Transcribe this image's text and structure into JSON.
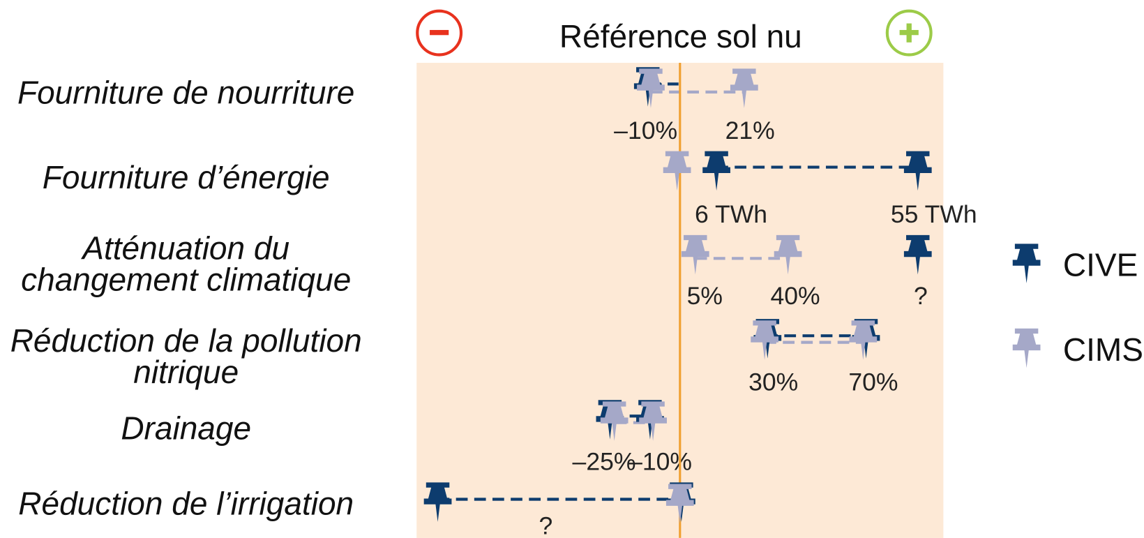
{
  "title": "Référence sol nu",
  "rows": [
    {
      "label": [
        "Fourniture de nourriture"
      ],
      "values": [
        "–10%",
        "21%"
      ]
    },
    {
      "label": [
        "Fourniture d’énergie"
      ],
      "values": [
        "6 TWh",
        "55 TWh"
      ]
    },
    {
      "label": [
        "Atténuation du",
        "changement climatique"
      ],
      "values": [
        "5%",
        "40%",
        "?"
      ]
    },
    {
      "label": [
        "Réduction de la pollution",
        "nitrique"
      ],
      "values": [
        "30%",
        "70%"
      ]
    },
    {
      "label": [
        "Drainage"
      ],
      "values": [
        "–25%",
        "–10%"
      ]
    },
    {
      "label": [
        "Réduction de l’irrigation"
      ],
      "values": [
        "?"
      ]
    }
  ],
  "legend": [
    "CIVE",
    "CIMS"
  ]
}
